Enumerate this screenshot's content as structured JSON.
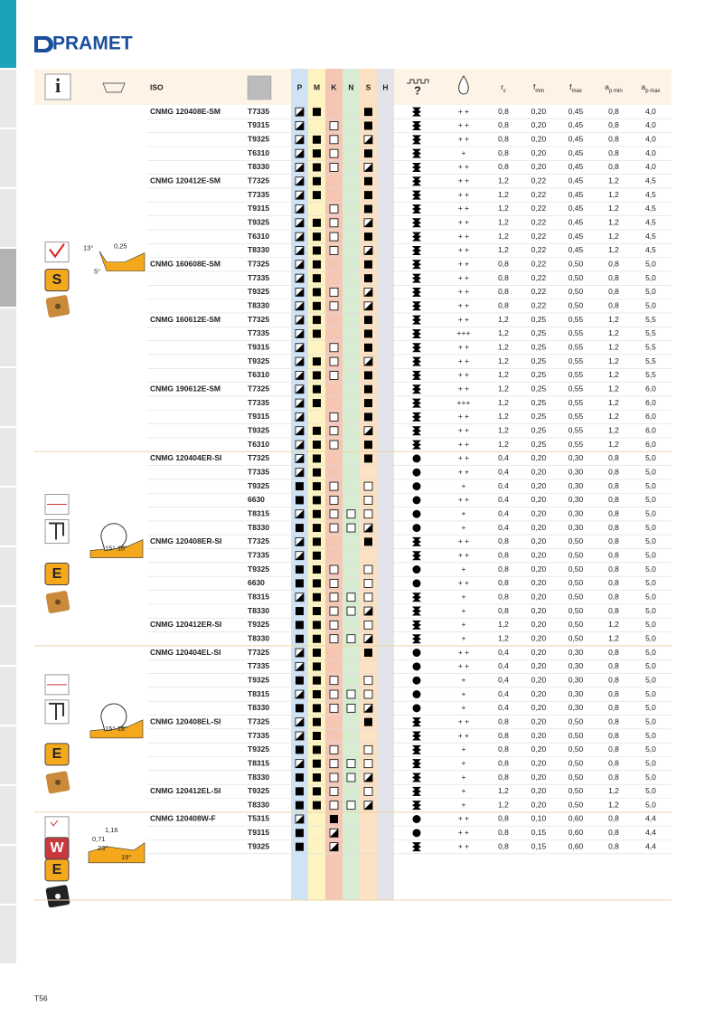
{
  "header": {
    "brand": "PRAMET",
    "info_icon": "i",
    "chip_icon": "?"
  },
  "columns": {
    "iso": "ISO",
    "materials": [
      "P",
      "M",
      "K",
      "N",
      "S",
      "H"
    ],
    "params": [
      {
        "t": "r",
        "s": "ε"
      },
      {
        "t": "f",
        "s": "min"
      },
      {
        "t": "f",
        "s": "max"
      },
      {
        "t": "a",
        "s": "p min"
      },
      {
        "t": "a",
        "s": "p max"
      }
    ]
  },
  "sections": [
    {
      "badge": "S",
      "figure": [
        "13°",
        "0,25",
        "5°"
      ],
      "groups": [
        {
          "iso": "CNMG 120408E-SM",
          "rows": [
            [
              "T7335",
              "hf--f",
              "s",
              "+ +",
              "0,8",
              "0,20",
              "0,45",
              "0,8",
              "4,0"
            ],
            [
              "T9315",
              "h-e-f",
              "s",
              "+ +",
              "0,8",
              "0,20",
              "0,45",
              "0,8",
              "4,0"
            ],
            [
              "T9325",
              "hfe-h",
              "s",
              "+ +",
              "0,8",
              "0,20",
              "0,45",
              "0,8",
              "4,0"
            ],
            [
              "T6310",
              "hfe-f",
              "s",
              "+",
              "0,8",
              "0,20",
              "0,45",
              "0,8",
              "4,0"
            ],
            [
              "T8330",
              "hfe-h",
              "s",
              "+ +",
              "0,8",
              "0,20",
              "0,45",
              "0,8",
              "4,0"
            ]
          ]
        },
        {
          "iso": "CNMG 120412E-SM",
          "rows": [
            [
              "T7325",
              "hf--f",
              "s",
              "+ +",
              "1,2",
              "0,22",
              "0,45",
              "1,2",
              "4,5"
            ],
            [
              "T7335",
              "hf--f",
              "s",
              "+ +",
              "1,2",
              "0,22",
              "0,45",
              "1,2",
              "4,5"
            ],
            [
              "T9315",
              "h-e-f",
              "s",
              "+ +",
              "1,2",
              "0,22",
              "0,45",
              "1,2",
              "4,5"
            ],
            [
              "T9325",
              "hfe-h",
              "s",
              "+ +",
              "1,2",
              "0,22",
              "0,45",
              "1,2",
              "4,5"
            ],
            [
              "T6310",
              "hfe-f",
              "s",
              "+ +",
              "1,2",
              "0,22",
              "0,45",
              "1,2",
              "4,5"
            ],
            [
              "T8330",
              "hfe-h",
              "s",
              "+ +",
              "1,2",
              "0,22",
              "0,45",
              "1,2",
              "4,5"
            ]
          ]
        },
        {
          "iso": "CNMG 160608E-SM",
          "rows": [
            [
              "T7325",
              "hf--f",
              "s",
              "+ +",
              "0,8",
              "0,22",
              "0,50",
              "0,8",
              "5,0"
            ],
            [
              "T7335",
              "hf--f",
              "s",
              "+ +",
              "0,8",
              "0,22",
              "0,50",
              "0,8",
              "5,0"
            ],
            [
              "T9325",
              "hfe-h",
              "s",
              "+ +",
              "0,8",
              "0,22",
              "0,50",
              "0,8",
              "5,0"
            ],
            [
              "T8330",
              "hfe-h",
              "s",
              "+ +",
              "0,8",
              "0,22",
              "0,50",
              "0,8",
              "5,0"
            ]
          ]
        },
        {
          "iso": "CNMG 160612E-SM",
          "rows": [
            [
              "T7325",
              "hf--f",
              "s",
              "+ +",
              "1,2",
              "0,25",
              "0,55",
              "1,2",
              "5,5"
            ],
            [
              "T7335",
              "hf--f",
              "s",
              "+++",
              "1,2",
              "0,25",
              "0,55",
              "1,2",
              "5,5"
            ],
            [
              "T9315",
              "h-e-f",
              "s",
              "+ +",
              "1,2",
              "0,25",
              "0,55",
              "1,2",
              "5,5"
            ],
            [
              "T9325",
              "hfe-h",
              "s",
              "+ +",
              "1,2",
              "0,25",
              "0,55",
              "1,2",
              "5,5"
            ],
            [
              "T6310",
              "hfe-f",
              "s",
              "+ +",
              "1,2",
              "0,25",
              "0,55",
              "1,2",
              "5,5"
            ]
          ]
        },
        {
          "iso": "CNMG 190612E-SM",
          "rows": [
            [
              "T7325",
              "hf--f",
              "s",
              "+ +",
              "1,2",
              "0,25",
              "0,55",
              "1,2",
              "6,0"
            ],
            [
              "T7335",
              "hf--f",
              "s",
              "+++",
              "1,2",
              "0,25",
              "0,55",
              "1,2",
              "6,0"
            ],
            [
              "T9315",
              "h-e-f",
              "s",
              "+ +",
              "1,2",
              "0,25",
              "0,55",
              "1,2",
              "6,0"
            ],
            [
              "T9325",
              "hfe-h",
              "s",
              "+ +",
              "1,2",
              "0,25",
              "0,55",
              "1,2",
              "6,0"
            ],
            [
              "T6310",
              "hfe-f",
              "s",
              "+ +",
              "1,2",
              "0,25",
              "0,55",
              "1,2",
              "6,0"
            ]
          ]
        }
      ]
    },
    {
      "badge": "E",
      "figure": [
        "15°-18°"
      ],
      "groups": [
        {
          "iso": "CNMG 120404ER-SI",
          "rows": [
            [
              "T7325",
              "hf--f",
              "c",
              "+ +",
              "0,4",
              "0,20",
              "0,30",
              "0,8",
              "5,0"
            ],
            [
              "T7335",
              "hf---",
              "c",
              "+ +",
              "0,4",
              "0,20",
              "0,30",
              "0,8",
              "5,0"
            ],
            [
              "T9325",
              "ffe-e",
              "c",
              "+",
              "0,4",
              "0,20",
              "0,30",
              "0,8",
              "5,0"
            ],
            [
              "6630",
              "ffe-e",
              "c",
              "+ +",
              "0,4",
              "0,20",
              "0,30",
              "0,8",
              "5,0"
            ],
            [
              "T8315",
              "hfeee",
              "c",
              "+",
              "0,4",
              "0,20",
              "0,30",
              "0,8",
              "5,0"
            ],
            [
              "T8330",
              "ffeeh",
              "c",
              "+",
              "0,4",
              "0,20",
              "0,30",
              "0,8",
              "5,0"
            ]
          ]
        },
        {
          "iso": "CNMG 120408ER-SI",
          "rows": [
            [
              "T7325",
              "hf--f",
              "s",
              "+ +",
              "0,8",
              "0,20",
              "0,50",
              "0,8",
              "5,0"
            ],
            [
              "T7335",
              "hf---",
              "s",
              "+ +",
              "0,8",
              "0,20",
              "0,50",
              "0,8",
              "5,0"
            ],
            [
              "T9325",
              "ffe-e",
              "c",
              "+",
              "0,8",
              "0,20",
              "0,50",
              "0,8",
              "5,0"
            ],
            [
              "6630",
              "ffe-e",
              "c",
              "+ +",
              "0,8",
              "0,20",
              "0,50",
              "0,8",
              "5,0"
            ],
            [
              "T8315",
              "hfeee",
              "s",
              "+",
              "0,8",
              "0,20",
              "0,50",
              "0,8",
              "5,0"
            ],
            [
              "T8330",
              "ffeeh",
              "s",
              "+",
              "0,8",
              "0,20",
              "0,50",
              "0,8",
              "5,0"
            ]
          ]
        },
        {
          "iso": "CNMG 120412ER-SI",
          "rows": [
            [
              "T9325",
              "ffe-e",
              "s",
              "+",
              "1,2",
              "0,20",
              "0,50",
              "1,2",
              "5,0"
            ],
            [
              "T8330",
              "ffeeh",
              "s",
              "+",
              "1,2",
              "0,20",
              "0,50",
              "1,2",
              "5,0"
            ]
          ]
        }
      ]
    },
    {
      "badge": "E",
      "figure": [
        "15°-18°"
      ],
      "groups": [
        {
          "iso": "CNMG 120404EL-SI",
          "rows": [
            [
              "T7325",
              "hf--f",
              "c",
              "+ +",
              "0,4",
              "0,20",
              "0,30",
              "0,8",
              "5,0"
            ],
            [
              "T7335",
              "hf---",
              "c",
              "+ +",
              "0,4",
              "0,20",
              "0,30",
              "0,8",
              "5,0"
            ],
            [
              "T9325",
              "ffe-e",
              "c",
              "+",
              "0,4",
              "0,20",
              "0,30",
              "0,8",
              "5,0"
            ],
            [
              "T8315",
              "hfeee",
              "c",
              "+",
              "0,4",
              "0,20",
              "0,30",
              "0,8",
              "5,0"
            ],
            [
              "T8330",
              "ffeeh",
              "c",
              "+",
              "0,4",
              "0,20",
              "0,30",
              "0,8",
              "5,0"
            ]
          ]
        },
        {
          "iso": "CNMG 120408EL-SI",
          "rows": [
            [
              "T7325",
              "hf--f",
              "s",
              "+ +",
              "0,8",
              "0,20",
              "0,50",
              "0,8",
              "5,0"
            ],
            [
              "T7335",
              "hf---",
              "s",
              "+ +",
              "0,8",
              "0,20",
              "0,50",
              "0,8",
              "5,0"
            ],
            [
              "T9325",
              "ffe-e",
              "s",
              "+",
              "0,8",
              "0,20",
              "0,50",
              "0,8",
              "5,0"
            ],
            [
              "T8315",
              "hfeee",
              "s",
              "+",
              "0,8",
              "0,20",
              "0,50",
              "0,8",
              "5,0"
            ],
            [
              "T8330",
              "ffeeh",
              "s",
              "+",
              "0,8",
              "0,20",
              "0,50",
              "0,8",
              "5,0"
            ]
          ]
        },
        {
          "iso": "CNMG 120412EL-SI",
          "rows": [
            [
              "T9325",
              "ffe-e",
              "s",
              "+",
              "1,2",
              "0,20",
              "0,50",
              "1,2",
              "5,0"
            ],
            [
              "T8330",
              "ffeeh",
              "s",
              "+",
              "1,2",
              "0,20",
              "0,50",
              "1,2",
              "5,0"
            ]
          ]
        }
      ]
    },
    {
      "badge": "W",
      "badge2": "E",
      "figure": [
        "1,16",
        "0,71",
        "23°",
        "19°"
      ],
      "groups": [
        {
          "iso": "CNMG 120408W-F",
          "rows": [
            [
              "T5315",
              "h-f--",
              "c",
              "+ +",
              "0,8",
              "0,10",
              "0,60",
              "0,8",
              "4,4"
            ],
            [
              "T9315",
              "f-h--",
              "c",
              "+ +",
              "0,8",
              "0,15",
              "0,60",
              "0,8",
              "4,4"
            ],
            [
              "T9325",
              "f-h--",
              "s",
              "+ +",
              "0,8",
              "0,15",
              "0,60",
              "0,8",
              "4,4"
            ]
          ]
        }
      ]
    }
  ],
  "footer": {
    "page": "T56"
  }
}
